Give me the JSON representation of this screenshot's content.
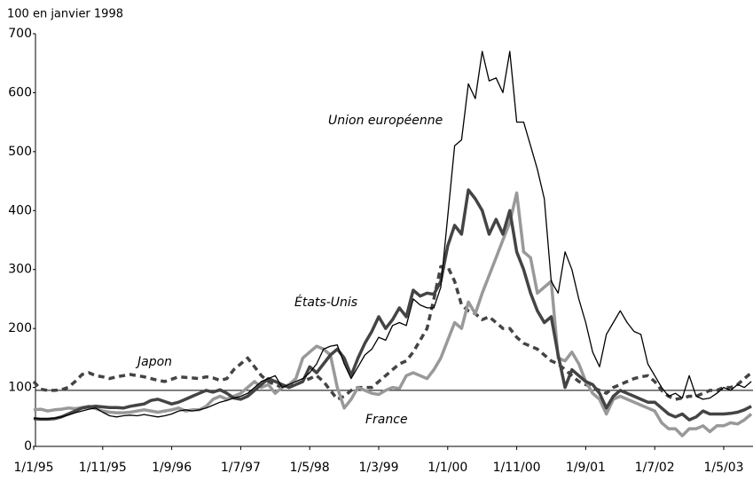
{
  "chart_data": {
    "type": "line",
    "ylabel": "100 en janvier 1998",
    "categories": [
      "1/1/95",
      null,
      null,
      null,
      null,
      null,
      null,
      null,
      null,
      null,
      "1/11/95",
      null,
      null,
      null,
      null,
      null,
      null,
      null,
      null,
      null,
      "1/9/96",
      null,
      null,
      null,
      null,
      null,
      null,
      null,
      null,
      null,
      "1/7/97",
      null,
      null,
      null,
      null,
      null,
      null,
      null,
      null,
      null,
      "1/5/98",
      null,
      null,
      null,
      null,
      null,
      null,
      null,
      null,
      null,
      "1/3/99",
      null,
      null,
      null,
      null,
      null,
      null,
      null,
      null,
      null,
      "1/1/00",
      null,
      null,
      null,
      null,
      null,
      null,
      null,
      null,
      null,
      "1/11/00",
      null,
      null,
      null,
      null,
      null,
      null,
      null,
      null,
      null,
      "1/9/01",
      null,
      null,
      null,
      null,
      null,
      null,
      null,
      null,
      null,
      "1/7/02",
      null,
      null,
      null,
      null,
      null,
      null,
      null,
      null,
      null,
      "1/5/03",
      null,
      null,
      null,
      null
    ],
    "series": [
      {
        "name": "Union européenne",
        "color": "#000000",
        "style": "solid",
        "width": 1.3,
        "values": [
          48,
          47,
          47,
          48,
          50,
          53,
          57,
          60,
          63,
          65,
          58,
          52,
          50,
          52,
          53,
          52,
          54,
          52,
          50,
          52,
          55,
          60,
          62,
          60,
          62,
          65,
          70,
          75,
          78,
          82,
          85,
          90,
          100,
          110,
          115,
          120,
          100,
          105,
          110,
          115,
          125,
          140,
          165,
          170,
          172,
          140,
          115,
          135,
          155,
          165,
          185,
          180,
          205,
          210,
          205,
          250,
          240,
          235,
          235,
          270,
          390,
          510,
          520,
          615,
          590,
          670,
          620,
          625,
          600,
          670,
          550,
          550,
          510,
          470,
          420,
          280,
          260,
          330,
          300,
          250,
          210,
          160,
          135,
          190,
          210,
          230,
          210,
          195,
          190,
          140,
          120,
          100,
          85,
          90,
          82,
          120,
          85,
          80,
          82,
          90,
          100,
          95,
          105,
          100,
          110
        ]
      },
      {
        "name": "États-Unis",
        "color": "#444444",
        "style": "solid",
        "width": 3.5,
        "values": [
          47,
          46,
          46,
          47,
          50,
          55,
          60,
          65,
          67,
          68,
          67,
          66,
          66,
          65,
          68,
          70,
          72,
          78,
          80,
          76,
          72,
          75,
          80,
          85,
          90,
          95,
          92,
          96,
          90,
          82,
          80,
          85,
          95,
          105,
          115,
          110,
          105,
          100,
          105,
          110,
          135,
          125,
          140,
          155,
          165,
          150,
          120,
          150,
          175,
          195,
          220,
          200,
          215,
          235,
          220,
          265,
          255,
          260,
          258,
          280,
          340,
          375,
          360,
          435,
          420,
          400,
          360,
          385,
          360,
          400,
          330,
          300,
          260,
          230,
          210,
          220,
          155,
          100,
          130,
          120,
          110,
          105,
          90,
          65,
          85,
          95,
          90,
          85,
          80,
          75,
          75,
          65,
          55,
          50,
          55,
          45,
          50,
          60,
          55,
          55,
          55,
          56,
          58,
          62,
          68
        ]
      },
      {
        "name": "Japon",
        "color": "#444444",
        "style": "dashed",
        "width": 3.5,
        "values": [
          110,
          97,
          95,
          95,
          96,
          100,
          110,
          122,
          125,
          120,
          118,
          115,
          118,
          120,
          122,
          120,
          118,
          115,
          112,
          110,
          114,
          118,
          117,
          116,
          115,
          118,
          116,
          112,
          115,
          130,
          140,
          150,
          135,
          120,
          110,
          105,
          100,
          102,
          105,
          110,
          115,
          120,
          110,
          95,
          80,
          85,
          95,
          100,
          100,
          100,
          110,
          120,
          130,
          140,
          145,
          160,
          180,
          200,
          250,
          305,
          305,
          280,
          240,
          230,
          225,
          215,
          220,
          210,
          200,
          200,
          185,
          175,
          170,
          165,
          155,
          145,
          140,
          130,
          120,
          110,
          105,
          100,
          95,
          90,
          100,
          105,
          110,
          115,
          118,
          120,
          110,
          95,
          85,
          80,
          82,
          85,
          85,
          90,
          95,
          95,
          100,
          100,
          105,
          115,
          125
        ]
      },
      {
        "name": "France",
        "color": "#999999",
        "style": "solid",
        "width": 3.5,
        "values": [
          62,
          63,
          60,
          62,
          63,
          65,
          64,
          66,
          68,
          64,
          60,
          58,
          57,
          57,
          58,
          60,
          62,
          60,
          58,
          60,
          62,
          65,
          60,
          62,
          62,
          68,
          80,
          85,
          80,
          85,
          90,
          100,
          110,
          100,
          105,
          90,
          100,
          105,
          115,
          150,
          160,
          170,
          165,
          155,
          100,
          65,
          80,
          100,
          95,
          90,
          88,
          95,
          100,
          98,
          120,
          125,
          120,
          115,
          130,
          150,
          180,
          210,
          200,
          245,
          225,
          260,
          290,
          320,
          350,
          380,
          430,
          330,
          320,
          260,
          270,
          280,
          150,
          145,
          160,
          140,
          110,
          90,
          80,
          55,
          80,
          85,
          80,
          75,
          70,
          65,
          60,
          40,
          30,
          30,
          18,
          30,
          30,
          35,
          25,
          35,
          35,
          40,
          38,
          45,
          55
        ]
      }
    ],
    "hline": 95,
    "ylim": [
      0,
      700
    ],
    "yticks": [
      0,
      100,
      200,
      300,
      400,
      500,
      600,
      700
    ]
  }
}
